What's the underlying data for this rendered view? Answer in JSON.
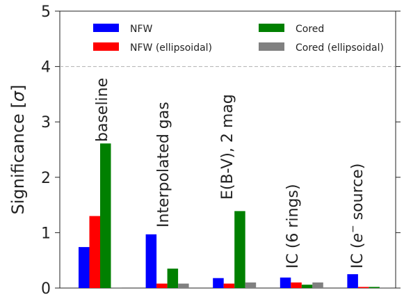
{
  "chart_data": {
    "type": "bar",
    "ylabel_text": "Significance [",
    "ylabel_sigma": "σ",
    "ylabel_close": "]",
    "ylim": [
      0,
      5
    ],
    "yticks": [
      "0",
      "1",
      "2",
      "3",
      "4",
      "5"
    ],
    "grid": false,
    "reference_line": {
      "y": 4,
      "style": "dashed",
      "color": "#b0b0b0"
    },
    "legend_position": "top",
    "categories": [
      {
        "label": "baseline"
      },
      {
        "label": "Interpolated gas"
      },
      {
        "label": "E(B-V), 2 mag"
      },
      {
        "label": "IC (6 rings)"
      },
      {
        "label_pre": "IC (",
        "label_e": "e",
        "label_sup": "−",
        "label_post": " source)"
      }
    ],
    "series": [
      {
        "name": "NFW",
        "color": "#0000ff",
        "values": [
          0.74,
          0.97,
          0.18,
          0.19,
          0.25
        ]
      },
      {
        "name": "NFW (ellipsoidal)",
        "color": "#ff0000",
        "values": [
          1.3,
          0.08,
          0.08,
          0.1,
          0.02
        ]
      },
      {
        "name": "Cored",
        "color": "#008000",
        "values": [
          2.61,
          0.35,
          1.39,
          0.06,
          0.02
        ]
      },
      {
        "name": "Cored (ellipsoidal)",
        "color": "#808080",
        "values": [
          0.01,
          0.08,
          0.1,
          0.1,
          0.01
        ]
      }
    ]
  }
}
